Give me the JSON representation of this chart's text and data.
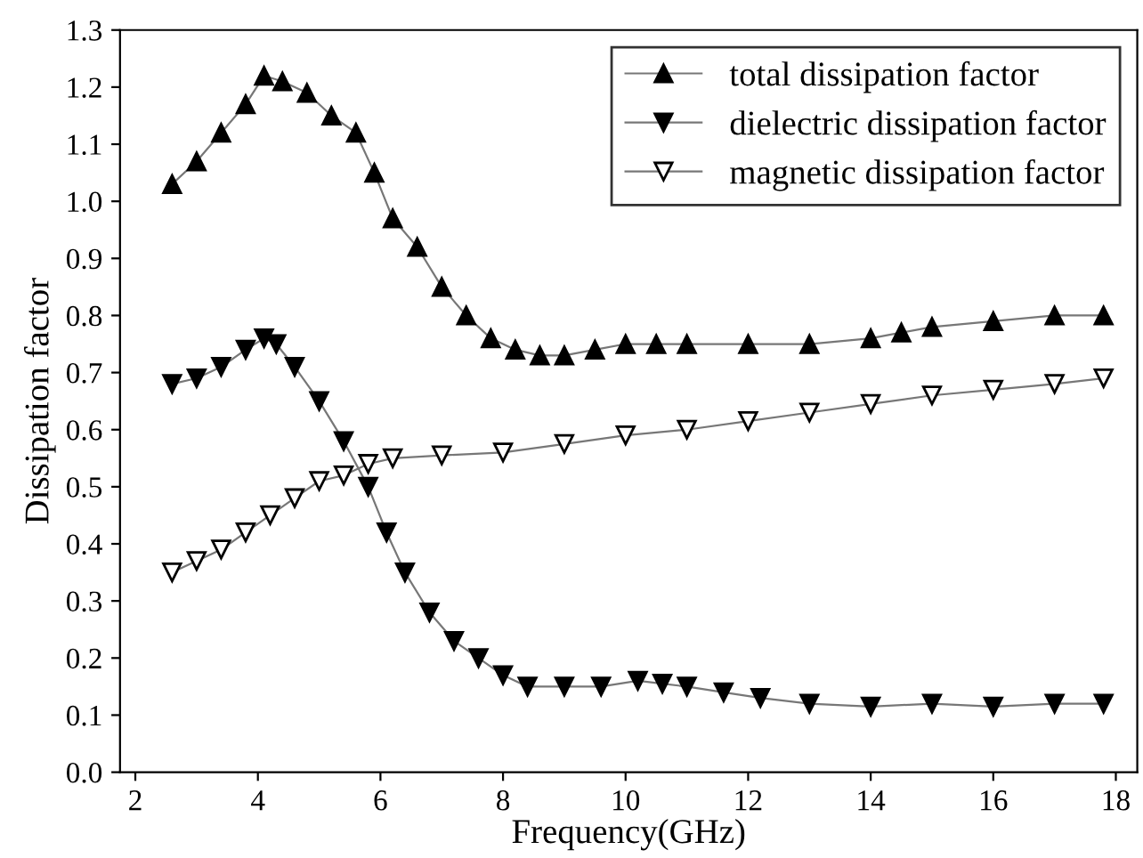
{
  "chart_data": {
    "type": "line",
    "xlabel": "Frequency(GHz)",
    "ylabel": "Dissipation factor",
    "xlim": [
      1.75,
      18.35
    ],
    "xticks": [
      2,
      4,
      6,
      8,
      10,
      12,
      14,
      16,
      18
    ],
    "ylim": [
      0,
      1.3
    ],
    "yticks": [
      {
        "value": 0,
        "label": "0.0"
      },
      0.1,
      0.2,
      0.3,
      0.4,
      0.5,
      0.6,
      0.7,
      0.8,
      0.9,
      {
        "value": 1,
        "label": "1.0"
      },
      1.1,
      1.2,
      1.3
    ],
    "legend": "top right",
    "grid": false,
    "line_style": "solid",
    "series": [
      {
        "name": "total dissipation factor",
        "color": "#000000",
        "marker": "triangle",
        "x": [
          2.6,
          3.0,
          3.4,
          3.8,
          4.1,
          4.4,
          4.8,
          5.2,
          5.6,
          5.9,
          6.2,
          6.6,
          7.0,
          7.4,
          7.8,
          8.2,
          8.6,
          9.0,
          9.5,
          10.0,
          10.5,
          11.0,
          12.0,
          13.0,
          14.0,
          14.5,
          15.0,
          16.0,
          17.0,
          17.8
        ],
        "values": [
          1.03,
          1.07,
          1.12,
          1.17,
          1.22,
          1.21,
          1.19,
          1.15,
          1.12,
          1.05,
          0.97,
          0.92,
          0.85,
          0.8,
          0.76,
          0.74,
          0.73,
          0.73,
          0.74,
          0.75,
          0.75,
          0.75,
          0.75,
          0.75,
          0.76,
          0.77,
          0.78,
          0.79,
          0.8,
          0.8
        ]
      },
      {
        "name": "dielectric dissipation factor",
        "color": "#000000",
        "marker": "triangle_down",
        "x": [
          2.6,
          3.0,
          3.4,
          3.8,
          4.1,
          4.3,
          4.6,
          5.0,
          5.4,
          5.8,
          6.1,
          6.4,
          6.8,
          7.2,
          7.6,
          8.0,
          8.4,
          9.0,
          9.6,
          10.2,
          10.6,
          11.0,
          11.6,
          12.2,
          13.0,
          14.0,
          15.0,
          16.0,
          17.0,
          17.8
        ],
        "values": [
          0.68,
          0.69,
          0.71,
          0.74,
          0.76,
          0.75,
          0.71,
          0.65,
          0.58,
          0.5,
          0.42,
          0.35,
          0.28,
          0.23,
          0.2,
          0.17,
          0.15,
          0.15,
          0.15,
          0.16,
          0.155,
          0.15,
          0.14,
          0.13,
          0.12,
          0.115,
          0.12,
          0.115,
          0.12,
          0.12
        ]
      },
      {
        "name": "magnetic dissipation factor",
        "color": "#000000",
        "marker": "triangle_down_open",
        "x": [
          2.6,
          3.0,
          3.4,
          3.8,
          4.2,
          4.6,
          5.0,
          5.4,
          5.8,
          6.2,
          7.0,
          8.0,
          9.0,
          10.0,
          11.0,
          12.0,
          13.0,
          14.0,
          15.0,
          16.0,
          17.0,
          17.8
        ],
        "values": [
          0.35,
          0.37,
          0.39,
          0.42,
          0.45,
          0.48,
          0.51,
          0.52,
          0.54,
          0.55,
          0.555,
          0.56,
          0.575,
          0.59,
          0.6,
          0.615,
          0.63,
          0.645,
          0.66,
          0.67,
          0.68,
          0.69
        ]
      }
    ]
  }
}
